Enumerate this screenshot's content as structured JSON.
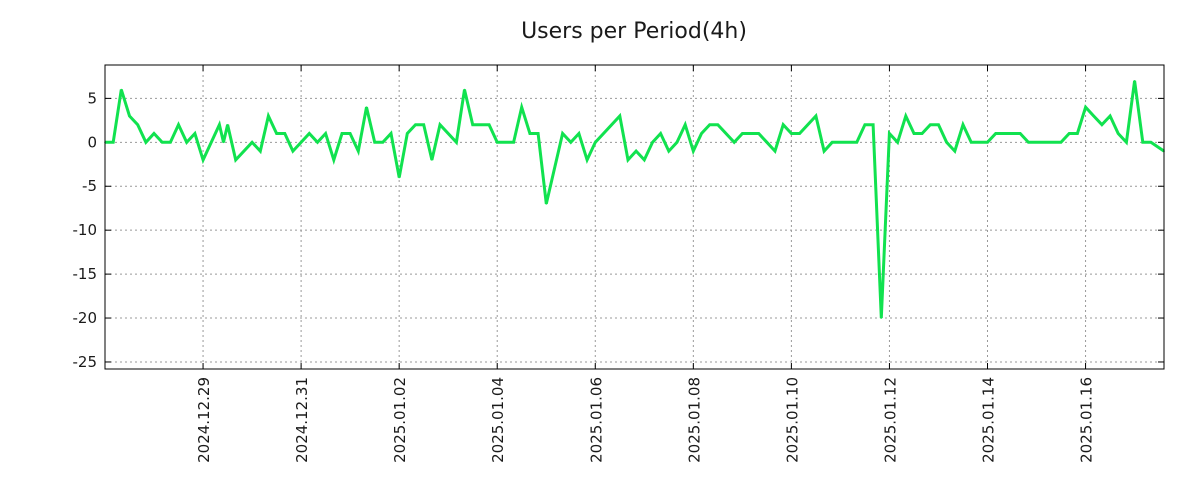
{
  "chart_data": {
    "type": "line",
    "title": "Users per Period(4h)",
    "xlabel": "",
    "ylabel": "",
    "x_unit": "4h periods since 2024-12-27 00:00",
    "xlim": [
      0,
      129.6
    ],
    "ylim": [
      -25.8,
      8.8
    ],
    "grid": true,
    "line_color": "#11e24f",
    "y_ticks": [
      5,
      0,
      -5,
      -10,
      -15,
      -20,
      -25
    ],
    "y_tick_labels": [
      "5",
      "0",
      "-5",
      "-10",
      "-15",
      "-20",
      "-25"
    ],
    "x_ticks": [
      12,
      24,
      36,
      48,
      60,
      72,
      84,
      96,
      108,
      120
    ],
    "x_tick_labels": [
      "2024.12.29",
      "2024.12.31",
      "2025.01.02",
      "2025.01.04",
      "2025.01.06",
      "2025.01.08",
      "2025.01.10",
      "2025.01.12",
      "2025.01.14",
      "2025.01.16"
    ],
    "series": [
      {
        "name": "Users",
        "x": [
          0,
          1,
          2,
          3,
          4,
          5,
          6,
          7,
          8,
          9,
          10,
          11,
          12,
          14,
          14.5,
          15,
          16,
          18,
          19,
          20,
          21,
          22,
          23,
          25,
          26,
          27,
          28,
          29,
          30,
          31,
          32,
          33,
          34,
          35,
          36,
          37,
          38,
          39,
          40,
          41,
          43,
          44,
          45,
          46,
          47,
          48,
          50,
          51,
          52,
          53,
          54,
          56,
          57,
          58,
          59,
          60,
          63,
          64,
          65,
          66,
          67,
          68,
          69,
          70,
          71,
          72,
          73,
          74,
          75,
          77,
          78,
          80,
          81,
          82,
          83,
          84,
          85,
          87,
          88,
          89,
          92,
          93,
          94,
          95,
          96,
          97,
          98,
          99,
          100,
          101,
          102,
          103,
          104,
          105,
          106,
          108,
          109,
          112,
          113,
          117,
          118,
          119,
          120,
          121,
          122,
          123,
          124,
          125,
          126,
          127,
          128,
          129.6
        ],
        "values": [
          0,
          0,
          6,
          3,
          2,
          0,
          1,
          0,
          0,
          2,
          0,
          1,
          -2,
          2,
          0,
          2,
          -2,
          0,
          -1,
          3,
          1,
          1,
          -1,
          1,
          0,
          1,
          -2,
          1,
          1,
          -1,
          4,
          0,
          0,
          1,
          -4,
          1,
          2,
          2,
          -2,
          2,
          0,
          6,
          2,
          2,
          2,
          0,
          0,
          4,
          1,
          1,
          -7,
          1,
          0,
          1,
          -2,
          0,
          3,
          -2,
          -1,
          -2,
          0,
          1,
          -1,
          0,
          2,
          -1,
          1,
          2,
          2,
          0,
          1,
          1,
          0,
          -1,
          2,
          1,
          1,
          3,
          -1,
          0,
          0,
          2,
          2,
          -20,
          1,
          0,
          3,
          1,
          1,
          2,
          2,
          0,
          -1,
          2,
          0,
          0,
          1,
          1,
          0,
          0,
          1,
          1,
          4,
          3,
          2,
          3,
          1,
          0,
          7,
          0,
          0,
          -1
        ]
      }
    ]
  }
}
